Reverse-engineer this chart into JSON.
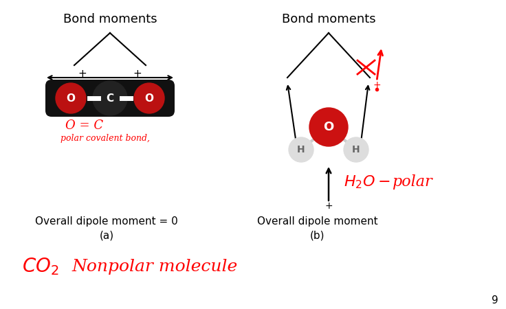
{
  "bg_color": "#ffffff",
  "title_a": "Bond moments",
  "title_b": "Bond moments",
  "label_a": "(a)",
  "label_b": "(b)",
  "dipole_a": "Overall dipole moment = 0",
  "dipole_b": "Overall dipole moment",
  "page_num": "9"
}
